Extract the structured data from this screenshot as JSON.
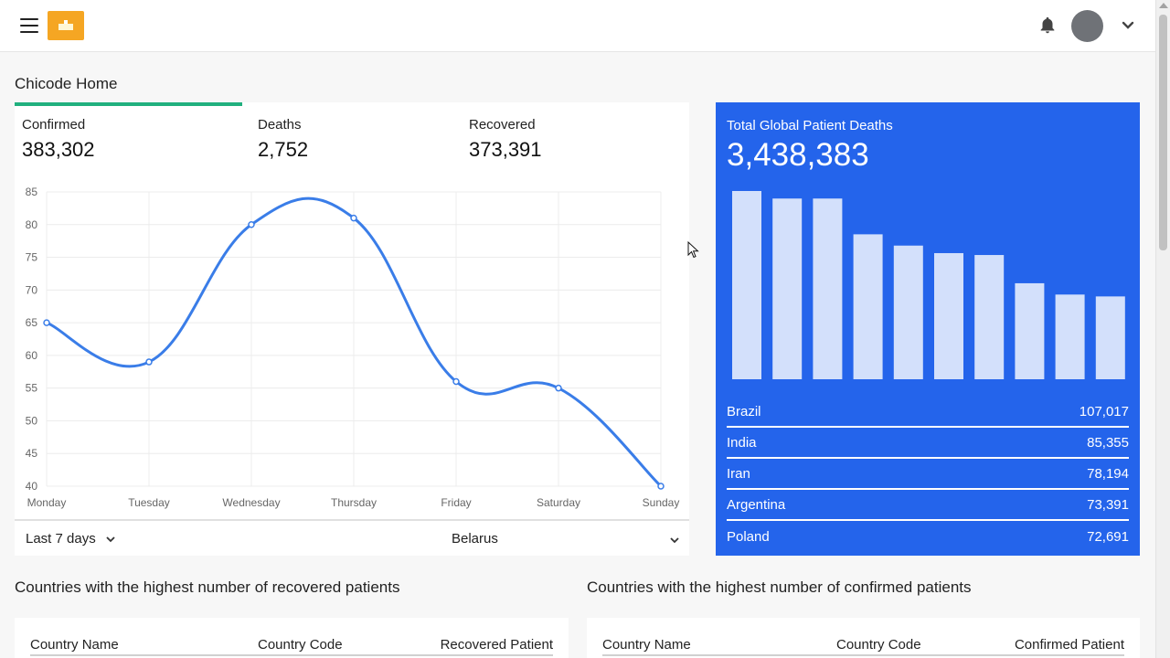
{
  "header": {
    "menu_icon": "hamburger-icon",
    "logo_icon": "logo-icon",
    "notification_icon": "bell-icon",
    "account_chevron_icon": "chevron-down-icon"
  },
  "page": {
    "title": "Chicode Home"
  },
  "stats": {
    "confirmed_label": "Confirmed",
    "confirmed_value": "383,302",
    "deaths_label": "Deaths",
    "deaths_value": "2,752",
    "recovered_label": "Recovered",
    "recovered_value": "373,391",
    "progress_fraction": 0.337
  },
  "filters": {
    "period": "Last 7 days",
    "country": "Belarus"
  },
  "global_deaths": {
    "label": "Total Global Patient Deaths",
    "value": "3,438,383",
    "countries": [
      {
        "name": "Brazil",
        "value": "107,017"
      },
      {
        "name": "India",
        "value": "85,355"
      },
      {
        "name": "Iran",
        "value": "78,194"
      },
      {
        "name": "Argentina",
        "value": "73,391"
      },
      {
        "name": "Poland",
        "value": "72,691"
      }
    ]
  },
  "tables": {
    "recovered": {
      "title": "Countries with the highest number of recovered patients",
      "col1": "Country Name",
      "col2": "Country Code",
      "col3": "Recovered Patient"
    },
    "confirmed": {
      "title": "Countries with the highest number of confirmed patients",
      "col1": "Country Name",
      "col2": "Country Code",
      "col3": "Confirmed Patient"
    }
  },
  "chart_data": [
    {
      "type": "line",
      "categories": [
        "Monday",
        "Tuesday",
        "Wednesday",
        "Thursday",
        "Friday",
        "Saturday",
        "Sunday"
      ],
      "values": [
        65,
        59,
        80,
        81,
        56,
        55,
        40
      ],
      "ylim": [
        40,
        85
      ],
      "yticks": [
        40,
        45,
        50,
        55,
        60,
        65,
        70,
        75,
        80,
        85
      ],
      "grid": true,
      "color": "#3a7de8"
    },
    {
      "type": "bar",
      "values": [
        100,
        96,
        96,
        77,
        71,
        67,
        66,
        51,
        45,
        44
      ],
      "ylim": [
        0,
        100
      ],
      "color": "#d3e0fb"
    }
  ]
}
